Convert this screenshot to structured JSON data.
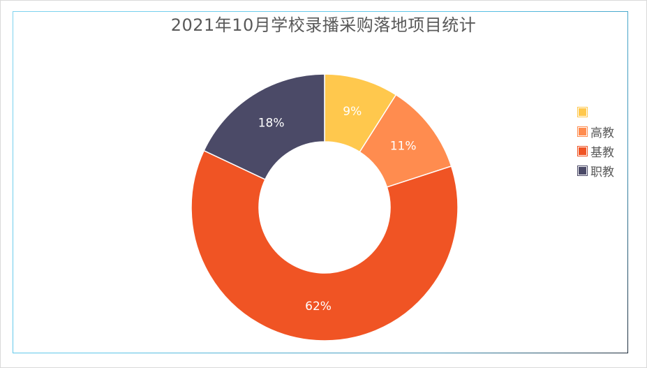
{
  "chart_data": {
    "type": "pie",
    "variant": "donut",
    "title": "2021年10月学校录播采购落地项目统计",
    "categories": [
      "",
      "高教",
      "基教",
      "职教"
    ],
    "values": [
      9,
      11,
      62,
      18
    ],
    "labels": [
      "9%",
      "11%",
      "62%",
      "18%"
    ],
    "colors": [
      "#ffc84d",
      "#ff8c4f",
      "#f05424",
      "#4b4a67"
    ],
    "legend_position": "right"
  }
}
